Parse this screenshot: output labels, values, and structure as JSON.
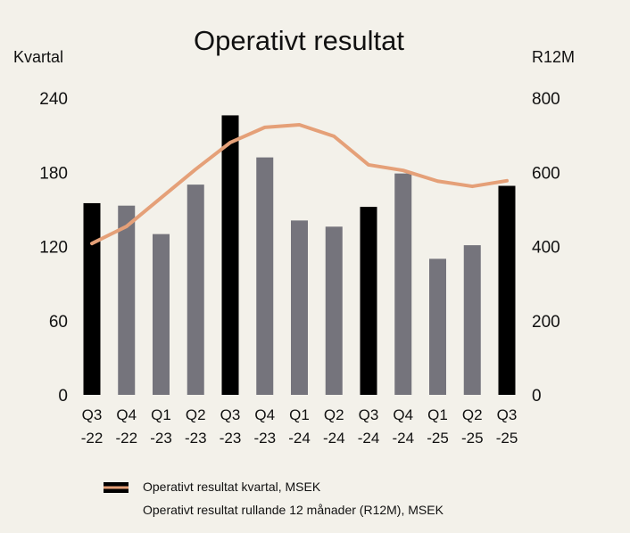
{
  "chart_data": {
    "type": "bar",
    "title": "Operativt resultat",
    "left_axis_label": "Kvartal",
    "right_axis_label": "R12M",
    "categories": [
      [
        "Q3",
        "-22"
      ],
      [
        "Q4",
        "-22"
      ],
      [
        "Q1",
        "-23"
      ],
      [
        "Q2",
        "-23"
      ],
      [
        "Q3",
        "-23"
      ],
      [
        "Q4",
        "-23"
      ],
      [
        "Q1",
        "-24"
      ],
      [
        "Q2",
        "-24"
      ],
      [
        "Q3",
        "-24"
      ],
      [
        "Q4",
        "-24"
      ],
      [
        "Q1",
        "-25"
      ],
      [
        "Q2",
        "-25"
      ],
      [
        "Q3",
        "-25"
      ]
    ],
    "left_ylim": [
      0,
      240
    ],
    "left_ticks": [
      "0",
      "60",
      "120",
      "180",
      "240"
    ],
    "right_ylim": [
      0,
      800
    ],
    "right_ticks": [
      "0",
      "200",
      "400",
      "600",
      "800"
    ],
    "grid": false,
    "series": [
      {
        "name": "Operativt resultat kvartal, MSEK",
        "type": "bar",
        "axis": "left",
        "values": [
          155,
          153,
          130,
          170,
          226,
          192,
          141,
          136,
          152,
          179,
          110,
          121,
          169
        ],
        "highlight_q3": true
      },
      {
        "name": "Operativt resultat rullande 12 månader (R12M), MSEK",
        "type": "line",
        "axis": "right",
        "values": [
          408,
          454,
          531,
          608,
          680,
          721,
          728,
          697,
          620,
          605,
          576,
          562,
          577
        ]
      }
    ],
    "legend_position": "bottom-left"
  },
  "colors": {
    "background": "#f3f1ea",
    "bar_q3": "#000000",
    "bar_other": "#75747c",
    "line": "#e5a078"
  }
}
